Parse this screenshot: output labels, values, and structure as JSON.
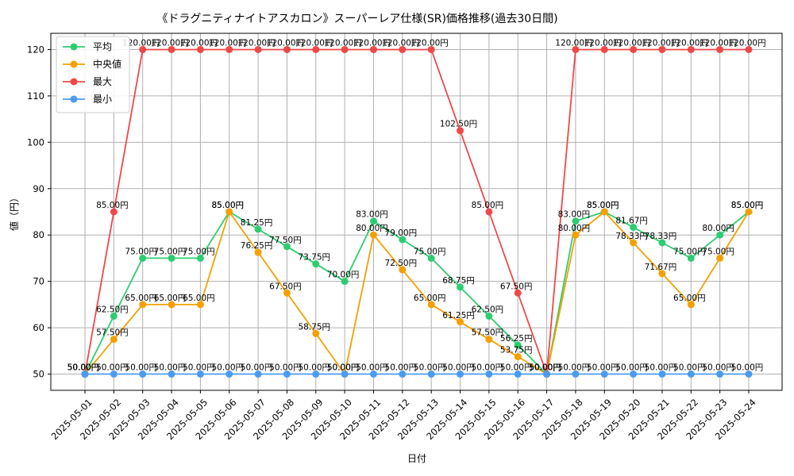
{
  "chart_data": {
    "type": "line",
    "title": "《ドラグニティナイトアスカロン》スーパーレア仕様(SR)価格推移(過去30日間)",
    "xlabel": "日付",
    "ylabel": "値（円）",
    "ylim": [
      46.5,
      123.5
    ],
    "yticks": [
      50,
      60,
      70,
      80,
      90,
      100,
      110,
      120
    ],
    "grid": true,
    "legend_position": "top-left",
    "label_suffix": "円",
    "categories": [
      "2025-05-01",
      "2025-05-02",
      "2025-05-03",
      "2025-05-04",
      "2025-05-05",
      "2025-05-06",
      "2025-05-07",
      "2025-05-08",
      "2025-05-09",
      "2025-05-10",
      "2025-05-11",
      "2025-05-12",
      "2025-05-13",
      "2025-05-14",
      "2025-05-15",
      "2025-05-16",
      "2025-05-17",
      "2025-05-18",
      "2025-05-19",
      "2025-05-20",
      "2025-05-21",
      "2025-05-22",
      "2025-05-23",
      "2025-05-24"
    ],
    "series": [
      {
        "name": "平均",
        "color": "#2ecc71",
        "values": [
          50.0,
          62.5,
          75.0,
          75.0,
          75.0,
          85.0,
          81.25,
          77.5,
          73.75,
          70.0,
          83.0,
          79.0,
          75.0,
          68.75,
          62.5,
          56.25,
          50.0,
          83.0,
          85.0,
          81.67,
          78.33,
          75.0,
          80.0,
          85.0
        ]
      },
      {
        "name": "中央値",
        "color": "#f5a000",
        "values": [
          50.0,
          57.5,
          65.0,
          65.0,
          65.0,
          85.0,
          76.25,
          67.5,
          58.75,
          50.0,
          80.0,
          72.5,
          65.0,
          61.25,
          57.5,
          53.75,
          50.0,
          80.0,
          85.0,
          78.33,
          71.67,
          65.0,
          75.0,
          85.0
        ]
      },
      {
        "name": "最大",
        "color": "#f04848",
        "values": [
          50.0,
          85.0,
          120.0,
          120.0,
          120.0,
          120.0,
          120.0,
          120.0,
          120.0,
          120.0,
          120.0,
          120.0,
          120.0,
          102.5,
          85.0,
          67.5,
          50.0,
          120.0,
          120.0,
          120.0,
          120.0,
          120.0,
          120.0,
          120.0
        ]
      },
      {
        "name": "最小",
        "color": "#4d9bf0",
        "values": [
          50.0,
          50.0,
          50.0,
          50.0,
          50.0,
          50.0,
          50.0,
          50.0,
          50.0,
          50.0,
          50.0,
          50.0,
          50.0,
          50.0,
          50.0,
          50.0,
          50.0,
          50.0,
          50.0,
          50.0,
          50.0,
          50.0,
          50.0,
          50.0
        ]
      }
    ]
  }
}
